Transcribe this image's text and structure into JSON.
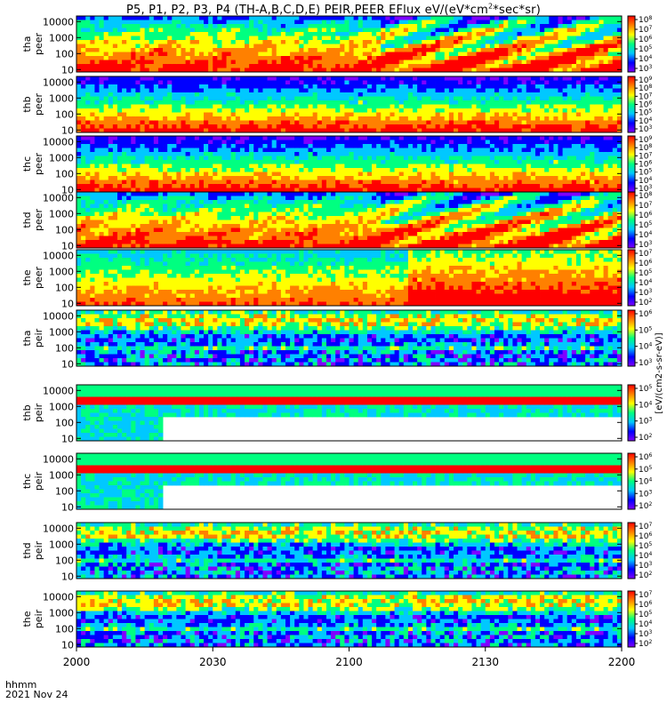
{
  "chart_data": {
    "type": "heatmap",
    "title": "P5, P1, P2, P3, P4 (TH-A,B,C,D,E) PEIR,PEER EFlux eV/(eV*cm2*sec*sr)",
    "x_label": "hhmm",
    "date_label": "2021 Nov 24",
    "x_ticks": [
      "2000",
      "2030",
      "2100",
      "2130",
      "2200"
    ],
    "y_ticks": [
      "10",
      "100",
      "1000",
      "10000"
    ],
    "colorbar_label": "[eV/(cm2-s-sr-eV)]",
    "colormap": [
      "#7f00ff",
      "#0000ff",
      "#00c8ff",
      "#00ff80",
      "#ffff00",
      "#ff8000",
      "#ff0000"
    ],
    "panels": [
      {
        "probe": "tha",
        "instrument": "peer",
        "cbar_ticks": [
          "10^8",
          "10^7",
          "10^6",
          "10^5",
          "10^4",
          "10^3"
        ]
      },
      {
        "probe": "thb",
        "instrument": "peer",
        "cbar_ticks": [
          "10^9",
          "10^8",
          "10^7",
          "10^6",
          "10^5",
          "10^4",
          "10^3"
        ]
      },
      {
        "probe": "thc",
        "instrument": "peer",
        "cbar_ticks": [
          "10^9",
          "10^8",
          "10^7",
          "10^6",
          "10^5",
          "10^4",
          "10^3"
        ]
      },
      {
        "probe": "thd",
        "instrument": "peer",
        "cbar_ticks": [
          "10^8",
          "10^7",
          "10^6",
          "10^5",
          "10^4",
          "10^3"
        ]
      },
      {
        "probe": "the",
        "instrument": "peer",
        "cbar_ticks": [
          "10^7",
          "10^6",
          "10^5",
          "10^4",
          "10^3",
          "10^2"
        ]
      },
      {
        "probe": "tha",
        "instrument": "peir",
        "cbar_ticks": [
          "10^6",
          "10^5",
          "10^4",
          "10^3"
        ]
      },
      {
        "probe": "thb",
        "instrument": "peir",
        "cbar_ticks": [
          "10^5",
          "10^4",
          "10^3",
          "10^2"
        ]
      },
      {
        "probe": "thc",
        "instrument": "peir",
        "cbar_ticks": [
          "10^6",
          "10^5",
          "10^4",
          "10^3",
          "10^2"
        ]
      },
      {
        "probe": "thd",
        "instrument": "peir",
        "cbar_ticks": [
          "10^7",
          "10^6",
          "10^5",
          "10^4",
          "10^3",
          "10^2"
        ]
      },
      {
        "probe": "the",
        "instrument": "peir",
        "cbar_ticks": [
          "10^7",
          "10^6",
          "10^5",
          "10^4",
          "10^3",
          "10^2"
        ]
      }
    ]
  }
}
